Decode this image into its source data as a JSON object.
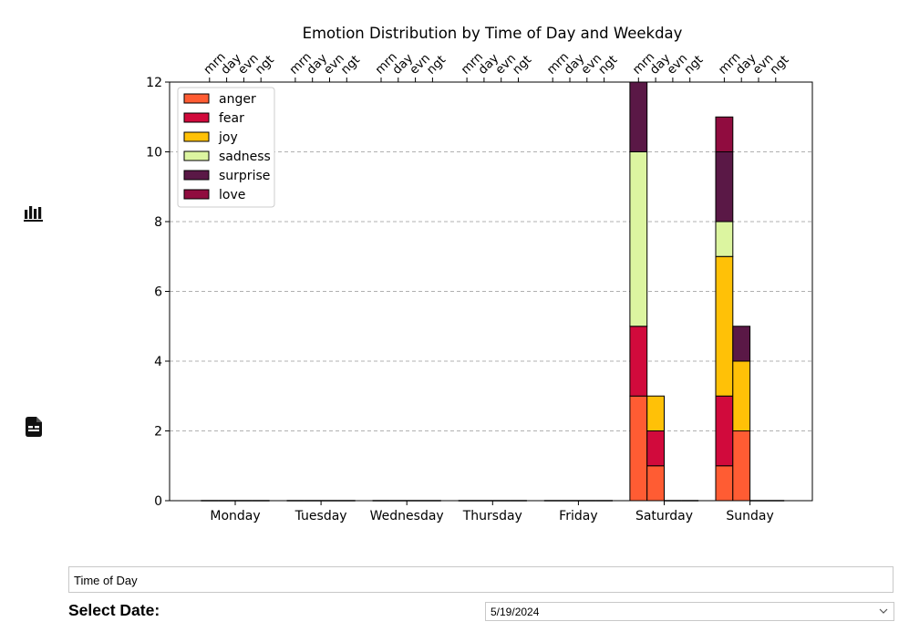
{
  "sidebar": {
    "items": [
      {
        "icon": "bar-chart-icon"
      },
      {
        "icon": "document-icon"
      }
    ]
  },
  "controls": {
    "mode_value": "Time of Day",
    "date_label": "Select Date:",
    "date_value": "5/19/2024"
  },
  "chart_data": {
    "type": "bar",
    "stacked": true,
    "title": "Emotion Distribution by Time of Day and Weekday",
    "xlabel": "",
    "ylabel": "",
    "categories": [
      "Monday",
      "Tuesday",
      "Wednesday",
      "Thursday",
      "Friday",
      "Saturday",
      "Sunday"
    ],
    "sub_categories": [
      "mrn",
      "day",
      "evn",
      "ngt"
    ],
    "ylim": [
      0,
      12
    ],
    "yticks": [
      0,
      2,
      4,
      6,
      8,
      10,
      12
    ],
    "grid": "y-dashed",
    "legend_position": "top-left",
    "series": [
      {
        "name": "anger",
        "color": "#ff5c33",
        "values": [
          [
            0,
            0,
            0,
            0
          ],
          [
            0,
            0,
            0,
            0
          ],
          [
            0,
            0,
            0,
            0
          ],
          [
            0,
            0,
            0,
            0
          ],
          [
            0,
            0,
            0,
            0
          ],
          [
            3,
            1,
            0,
            0
          ],
          [
            1,
            2,
            0,
            0
          ]
        ]
      },
      {
        "name": "fear",
        "color": "#d10a3c",
        "values": [
          [
            0,
            0,
            0,
            0
          ],
          [
            0,
            0,
            0,
            0
          ],
          [
            0,
            0,
            0,
            0
          ],
          [
            0,
            0,
            0,
            0
          ],
          [
            0,
            0,
            0,
            0
          ],
          [
            2,
            1,
            0,
            0
          ],
          [
            2,
            0,
            0,
            0
          ]
        ]
      },
      {
        "name": "joy",
        "color": "#ffc107",
        "values": [
          [
            0,
            0,
            0,
            0
          ],
          [
            0,
            0,
            0,
            0
          ],
          [
            0,
            0,
            0,
            0
          ],
          [
            0,
            0,
            0,
            0
          ],
          [
            0,
            0,
            0,
            0
          ],
          [
            0,
            1,
            0,
            0
          ],
          [
            4,
            2,
            0,
            0
          ]
        ]
      },
      {
        "name": "sadness",
        "color": "#dcf5a0",
        "values": [
          [
            0,
            0,
            0,
            0
          ],
          [
            0,
            0,
            0,
            0
          ],
          [
            0,
            0,
            0,
            0
          ],
          [
            0,
            0,
            0,
            0
          ],
          [
            0,
            0,
            0,
            0
          ],
          [
            5,
            0,
            0,
            0
          ],
          [
            1,
            0,
            0,
            0
          ]
        ]
      },
      {
        "name": "surprise",
        "color": "#5a1846",
        "values": [
          [
            0,
            0,
            0,
            0
          ],
          [
            0,
            0,
            0,
            0
          ],
          [
            0,
            0,
            0,
            0
          ],
          [
            0,
            0,
            0,
            0
          ],
          [
            0,
            0,
            0,
            0
          ],
          [
            2,
            0,
            0,
            0
          ],
          [
            2,
            1,
            0,
            0
          ]
        ]
      },
      {
        "name": "love",
        "color": "#900c3f",
        "values": [
          [
            0,
            0,
            0,
            0
          ],
          [
            0,
            0,
            0,
            0
          ],
          [
            0,
            0,
            0,
            0
          ],
          [
            0,
            0,
            0,
            0
          ],
          [
            0,
            0,
            0,
            0
          ],
          [
            0,
            0,
            0,
            0
          ],
          [
            1,
            0,
            0,
            0
          ]
        ]
      }
    ]
  }
}
